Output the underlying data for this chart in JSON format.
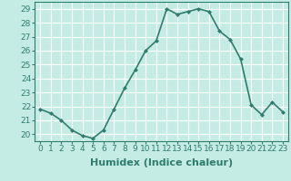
{
  "x": [
    0,
    1,
    2,
    3,
    4,
    5,
    6,
    7,
    8,
    9,
    10,
    11,
    12,
    13,
    14,
    15,
    16,
    17,
    18,
    19,
    20,
    21,
    22,
    23
  ],
  "y": [
    21.8,
    21.5,
    21.0,
    20.3,
    19.9,
    19.7,
    20.3,
    21.8,
    23.3,
    24.6,
    26.0,
    26.7,
    29.0,
    28.6,
    28.8,
    29.0,
    28.8,
    27.4,
    26.8,
    25.4,
    22.1,
    21.4,
    22.3,
    21.6
  ],
  "line_color": "#2e7d6e",
  "marker": "D",
  "marker_size": 2.0,
  "linewidth": 1.2,
  "bg_color": "#c5ece4",
  "grid_color": "#ffffff",
  "xlabel": "Humidex (Indice chaleur)",
  "xlabel_fontsize": 8,
  "xlabel_bold": true,
  "ylim": [
    19.5,
    29.5
  ],
  "yticks": [
    20,
    21,
    22,
    23,
    24,
    25,
    26,
    27,
    28,
    29
  ],
  "xticks": [
    0,
    1,
    2,
    3,
    4,
    5,
    6,
    7,
    8,
    9,
    10,
    11,
    12,
    13,
    14,
    15,
    16,
    17,
    18,
    19,
    20,
    21,
    22,
    23
  ],
  "xtick_labels": [
    "0",
    "1",
    "2",
    "3",
    "4",
    "5",
    "6",
    "7",
    "8",
    "9",
    "10",
    "11",
    "12",
    "13",
    "14",
    "15",
    "16",
    "17",
    "18",
    "19",
    "20",
    "21",
    "22",
    "23"
  ],
  "tick_fontsize": 6.5,
  "spine_color": "#2e7d6e",
  "tick_color": "#2e7d6e",
  "label_color": "#2e7d6e"
}
